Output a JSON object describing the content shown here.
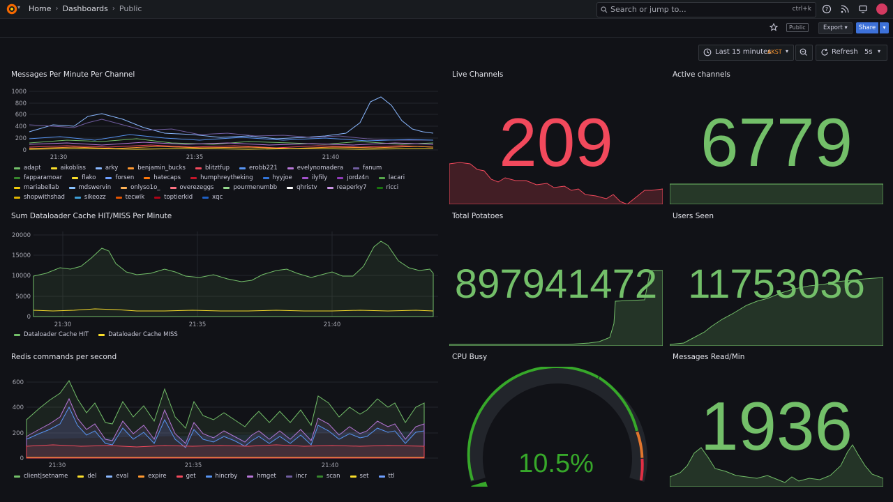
{
  "breadcrumb": {
    "home": "Home",
    "dashboards": "Dashboards",
    "current": "Public"
  },
  "search": {
    "placeholder": "Search or jump to...",
    "shortcut": "ctrl+k"
  },
  "toolbar": {
    "badge": "Public",
    "export_label": "Export",
    "share_label": "Share"
  },
  "time_picker": {
    "label": "Last 15 minutes",
    "timezone": "AKST"
  },
  "refresh": {
    "label": "Refresh",
    "interval": "5s"
  },
  "colors": {
    "green": "#73bf69",
    "red": "#f2495c",
    "accent": "#3d71d9"
  },
  "panels": {
    "messages": {
      "title": "Messages Per Minute Per Channel",
      "y_ticks": [
        "1000",
        "800",
        "600",
        "400",
        "200",
        "0"
      ],
      "x_ticks": [
        "21:30",
        "21:35",
        "21:40"
      ],
      "legend": [
        {
          "name": "adapt",
          "color": "#73bf69"
        },
        {
          "name": "aikobliss",
          "color": "#fade2a"
        },
        {
          "name": "arky",
          "color": "#8ab8ff"
        },
        {
          "name": "benjamin_bucks",
          "color": "#ff9830"
        },
        {
          "name": "blitztfup",
          "color": "#f2495c"
        },
        {
          "name": "erobb221",
          "color": "#5794f2"
        },
        {
          "name": "evelynomadera",
          "color": "#b877d9"
        },
        {
          "name": "fanum",
          "color": "#705da0"
        },
        {
          "name": "fapparamoar",
          "color": "#37872d"
        },
        {
          "name": "flako",
          "color": "#fade2a"
        },
        {
          "name": "forsen",
          "color": "#6e9fff"
        },
        {
          "name": "hatecaps",
          "color": "#ff780a"
        },
        {
          "name": "humphreytheking",
          "color": "#c4162a"
        },
        {
          "name": "hyyjoe",
          "color": "#3274d9"
        },
        {
          "name": "ilyfily",
          "color": "#a352cc"
        },
        {
          "name": "jordz4n",
          "color": "#8f3bb8"
        },
        {
          "name": "lacari",
          "color": "#56a64b"
        },
        {
          "name": "mariabellab",
          "color": "#f2cc0c"
        },
        {
          "name": "mdswervin",
          "color": "#8ac4ff"
        },
        {
          "name": "onlyso1o_",
          "color": "#ffb357"
        },
        {
          "name": "overezeggs",
          "color": "#ff7383"
        },
        {
          "name": "pourmenumbb",
          "color": "#96d98d"
        },
        {
          "name": "qhristv",
          "color": "#ffffff"
        },
        {
          "name": "reaperky7",
          "color": "#ca95e5"
        },
        {
          "name": "ricci",
          "color": "#19730e"
        },
        {
          "name": "shopwithshad",
          "color": "#e0b400"
        },
        {
          "name": "sikeozz",
          "color": "#3e9fd8"
        },
        {
          "name": "tecwik",
          "color": "#e55400"
        },
        {
          "name": "toptierkid",
          "color": "#ad0317"
        },
        {
          "name": "xqc",
          "color": "#1f60c4"
        }
      ]
    },
    "cache": {
      "title": "Sum Dataloader Cache HIT/MISS Per Minute",
      "y_ticks": [
        "20000",
        "15000",
        "10000",
        "5000",
        "0"
      ],
      "x_ticks": [
        "21:30",
        "21:35",
        "21:40"
      ],
      "legend": [
        {
          "name": "Dataloader Cache HIT",
          "color": "#73bf69"
        },
        {
          "name": "Dataloader Cache MISS",
          "color": "#fade2a"
        }
      ]
    },
    "redis": {
      "title": "Redis commands per second",
      "y_ticks": [
        "600",
        "400",
        "200",
        "0"
      ],
      "x_ticks": [
        "21:30",
        "21:35",
        "21:40"
      ],
      "legend": [
        {
          "name": "client|setname",
          "color": "#73bf69"
        },
        {
          "name": "del",
          "color": "#fade2a"
        },
        {
          "name": "eval",
          "color": "#8ab8ff"
        },
        {
          "name": "expire",
          "color": "#ff9830"
        },
        {
          "name": "get",
          "color": "#f2495c"
        },
        {
          "name": "hincrby",
          "color": "#5794f2"
        },
        {
          "name": "hmget",
          "color": "#b877d9"
        },
        {
          "name": "incr",
          "color": "#705da0"
        },
        {
          "name": "scan",
          "color": "#37872d"
        },
        {
          "name": "set",
          "color": "#fade2a"
        },
        {
          "name": "ttl",
          "color": "#6e9fff"
        }
      ]
    },
    "live_channels": {
      "title": "Live Channels",
      "value": "209"
    },
    "active_channels": {
      "title": "Active channels",
      "value": "6779"
    },
    "total_potatoes": {
      "title": "Total Potatoes",
      "value": "897941472"
    },
    "users_seen": {
      "title": "Users Seen",
      "value": "11753036"
    },
    "cpu_busy": {
      "title": "CPU Busy",
      "value": "10.5%",
      "fraction": 0.105
    },
    "messages_read": {
      "title": "Messages Read/Min",
      "value": "1936"
    }
  }
}
